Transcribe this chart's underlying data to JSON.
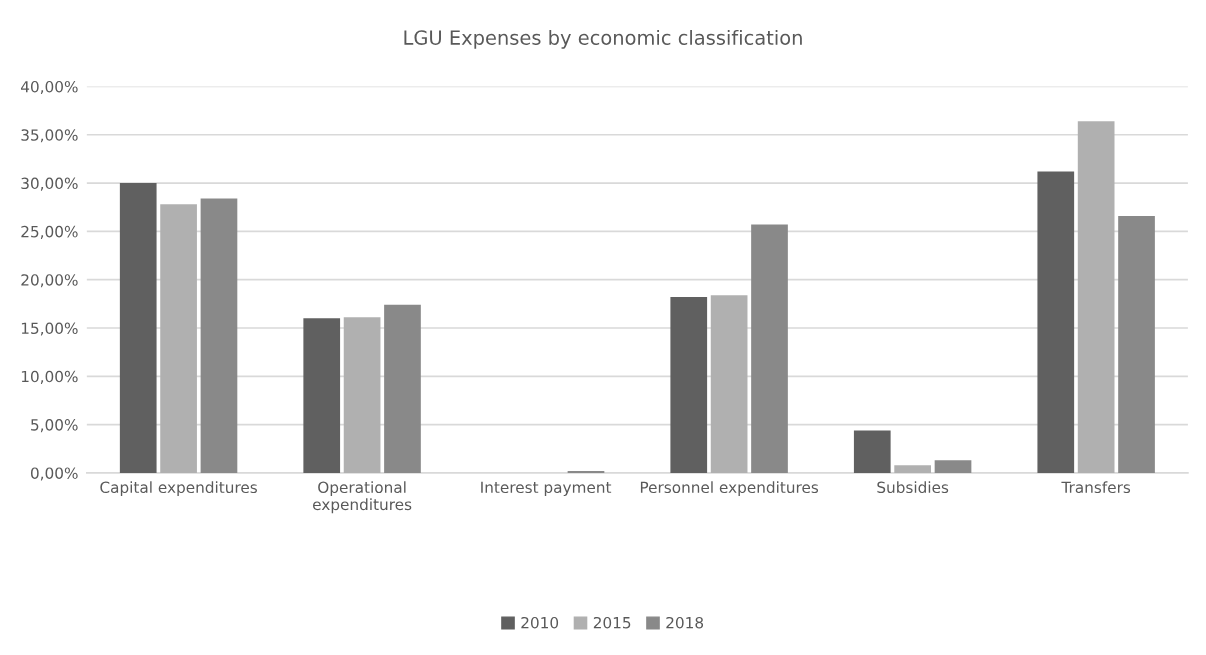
{
  "chart_data": {
    "type": "bar",
    "title": "LGU Expenses by economic classification",
    "categories": [
      "Capital expenditures",
      "Operational\nexpenditures",
      "Interest payment",
      "Personnel expenditures",
      "Subsidies",
      "Transfers"
    ],
    "series": [
      {
        "name": "2010",
        "color": "#606060",
        "values": [
          30.0,
          16.0,
          0,
          18.2,
          4.4,
          31.2
        ]
      },
      {
        "name": "2015",
        "color": "#b0b0b0",
        "values": [
          27.8,
          16.1,
          0,
          18.4,
          0.8,
          36.4
        ]
      },
      {
        "name": "2018",
        "color": "#898989",
        "values": [
          28.4,
          17.4,
          0.2,
          25.7,
          1.3,
          26.6
        ]
      }
    ],
    "ylim": [
      0,
      40
    ],
    "yticks": [
      {
        "value": 0,
        "label": "0,00%"
      },
      {
        "value": 5,
        "label": "5,00%"
      },
      {
        "value": 10,
        "label": "10,00%"
      },
      {
        "value": 15,
        "label": "15,00%"
      },
      {
        "value": 20,
        "label": "20,00%"
      },
      {
        "value": 25,
        "label": "25,00%"
      },
      {
        "value": 30,
        "label": "30,00%"
      },
      {
        "value": 35,
        "label": "35,00%"
      },
      {
        "value": 40,
        "label": "40,00%"
      }
    ],
    "grid": "y",
    "legend": "bottom"
  }
}
